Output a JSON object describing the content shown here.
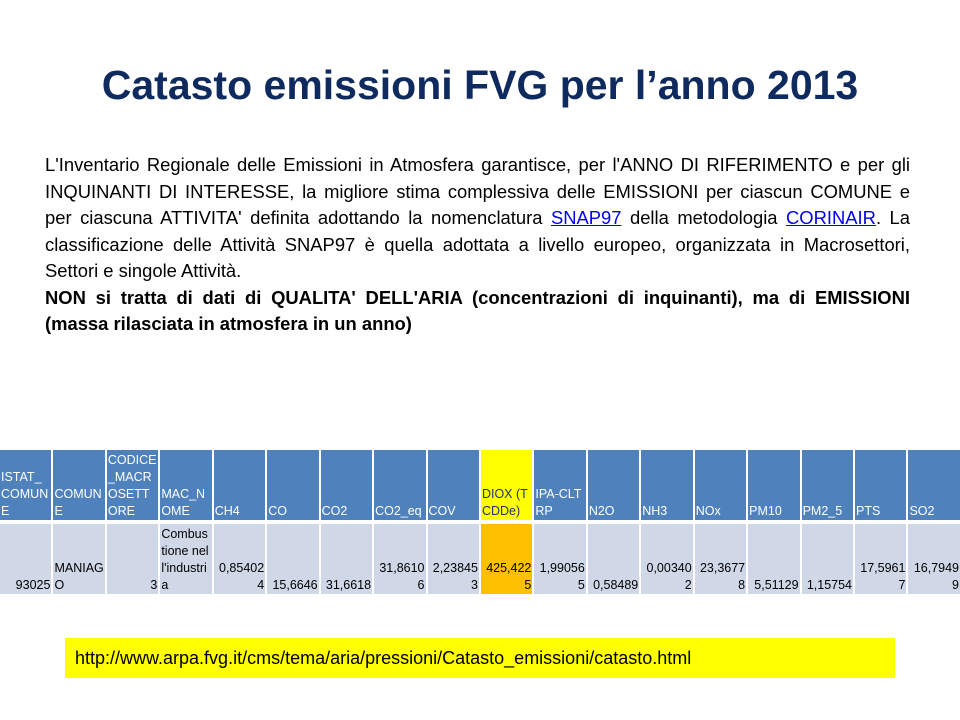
{
  "title": "Catasto emissioni FVG per l’anno 2013",
  "intro": {
    "part1": "L'Inventario Regionale delle Emissioni in Atmosfera garantisce, per l'ANNO DI RIFERIMENTO e per gli INQUINANTI DI INTERESSE, la migliore stima complessiva delle EMISSIONI per ciascun COMUNE e per ciascuna ATTIVITA' definita adottando la nomenclatura ",
    "link1": "SNAP97",
    "part2": " della metodologia ",
    "link2": "CORINAIR",
    "part3": ". La classificazione delle Attività SNAP97 è quella adottata a livello europeo, organizzata in Macrosettori, Settori e singole Attività.",
    "bold": "NON si tratta di dati di QUALITA' DELL'ARIA (concentrazioni di inquinanti), ma di EMISSIONI (massa rilasciata in atmosfera in un anno)"
  },
  "table": {
    "headers": [
      "ISTAT_COMUNE",
      "COMUNE",
      "CODICE_MACROSETTORE",
      "MAC_NOME",
      "CH4",
      "CO",
      "CO2",
      "CO2_eq",
      "COV",
      "DIOX (TCDDe)",
      "IPA-CLTRP",
      "N2O",
      "NH3",
      "NOx",
      "PM10",
      "PM2_5",
      "PTS",
      "SO2"
    ],
    "row": [
      "93025",
      "MANIAGO",
      "3",
      "Combustione nell'industria",
      "0,854024",
      "15,6646",
      "31,6618",
      "31,86106",
      "2,238453",
      "425,4225",
      "1,990565",
      "0,58489",
      "0,003402",
      "23,36778",
      "5,51129",
      "1,15754",
      "17,59617",
      "16,79499"
    ],
    "highlight_column": 9,
    "colors": {
      "header": "#4f81bd",
      "cell": "#d0d8e8",
      "highlight_header": "#ffff00",
      "highlight_cell": "#ffc000"
    }
  },
  "url": "http://www.arpa.fvg.it/cms/tema/aria/pressioni/Catasto_emissioni/catasto.html"
}
